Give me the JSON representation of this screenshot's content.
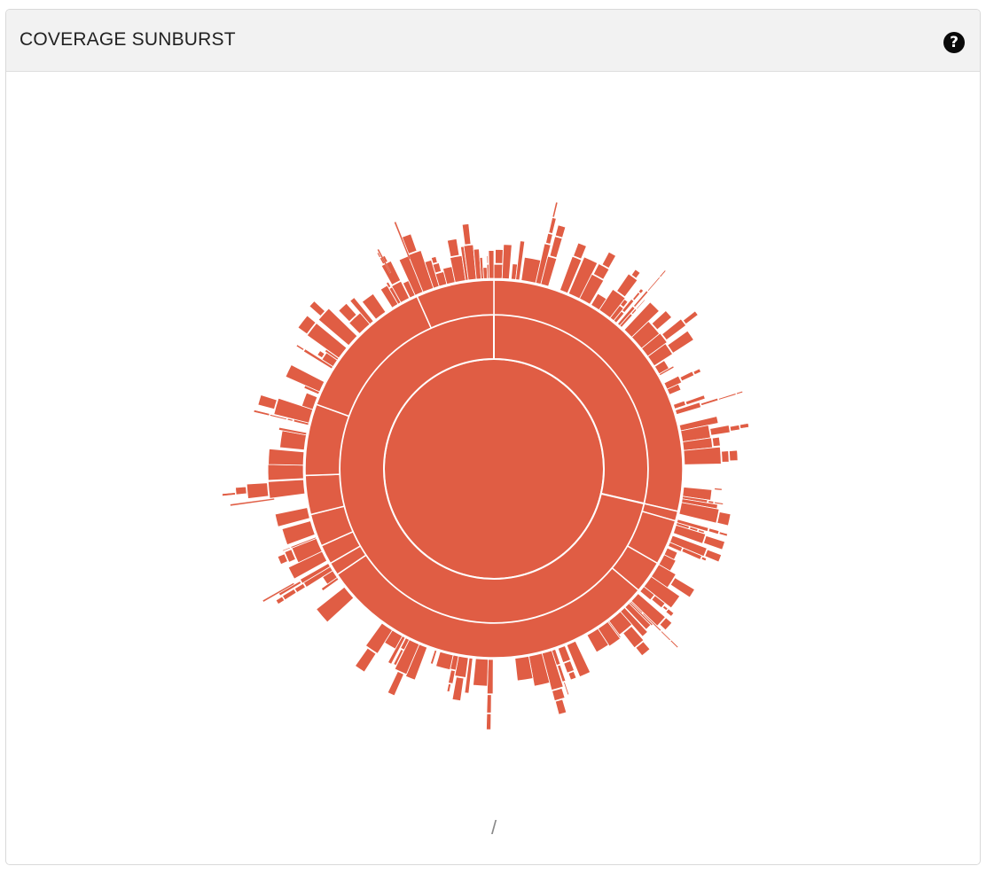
{
  "panel": {
    "title": "COVERAGE SUNBURST",
    "help_icon": "question-circle-icon",
    "help_glyph": "?"
  },
  "breadcrumb": {
    "path": "/"
  },
  "chart_data": {
    "type": "sunburst",
    "color": "#e05d44",
    "stroke": "#ffffff",
    "depth1": [
      {
        "start": 0,
        "end": 103
      },
      {
        "start": 103,
        "end": 360
      }
    ],
    "depth2_arcs": [
      {
        "start": 0,
        "end": 103
      },
      {
        "start": 103,
        "end": 106
      },
      {
        "start": 106,
        "end": 120
      },
      {
        "start": 120,
        "end": 130
      },
      {
        "start": 130,
        "end": 236
      },
      {
        "start": 236,
        "end": 240
      },
      {
        "start": 240,
        "end": 246
      },
      {
        "start": 246,
        "end": 256
      },
      {
        "start": 256,
        "end": 268
      },
      {
        "start": 268,
        "end": 290
      },
      {
        "start": 290,
        "end": 336
      },
      {
        "start": 336,
        "end": 360
      }
    ]
  }
}
